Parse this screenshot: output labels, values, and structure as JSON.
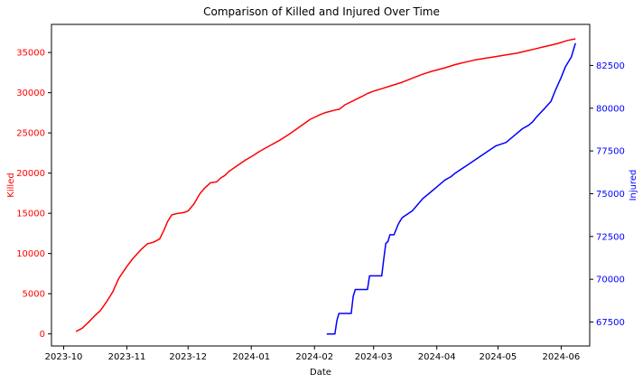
{
  "chart_data": {
    "type": "line",
    "title": "Comparison of Killed and Injured Over Time",
    "xlabel": "Date",
    "x_ticks": [
      "2023-10",
      "2023-11",
      "2023-12",
      "2024-01",
      "2024-02",
      "2024-03",
      "2024-04",
      "2024-05",
      "2024-06"
    ],
    "x_range": [
      "2023-09-25",
      "2024-06-15"
    ],
    "grid": false,
    "legend": "none",
    "left_axis": {
      "label": "Killed",
      "color": "#ff0000",
      "ylim": [
        -1500,
        38500
      ],
      "ticks": [
        0,
        5000,
        10000,
        15000,
        20000,
        25000,
        30000,
        35000
      ]
    },
    "right_axis": {
      "label": "Injured",
      "color": "#0000ff",
      "ylim": [
        66100,
        84900
      ],
      "ticks": [
        67500,
        70000,
        72500,
        75000,
        77500,
        80000,
        82500
      ]
    },
    "series": [
      {
        "axis": "left",
        "color": "#ff0000",
        "x": [
          "2023-10-07",
          "2023-10-10",
          "2023-10-13",
          "2023-10-16",
          "2023-10-19",
          "2023-10-22",
          "2023-10-25",
          "2023-10-28",
          "2023-11-01",
          "2023-11-04",
          "2023-11-08",
          "2023-11-11",
          "2023-11-14",
          "2023-11-17",
          "2023-11-19",
          "2023-11-21",
          "2023-11-23",
          "2023-11-26",
          "2023-11-29",
          "2023-12-01",
          "2023-12-04",
          "2023-12-06",
          "2023-12-07",
          "2023-12-09",
          "2023-12-12",
          "2023-12-15",
          "2023-12-17",
          "2023-12-19",
          "2023-12-21",
          "2023-12-25",
          "2023-12-29",
          "2024-01-02",
          "2024-01-05",
          "2024-01-10",
          "2024-01-15",
          "2024-01-20",
          "2024-01-25",
          "2024-01-30",
          "2024-02-04",
          "2024-02-06",
          "2024-02-12",
          "2024-02-13",
          "2024-02-16",
          "2024-02-20",
          "2024-02-24",
          "2024-02-27",
          "2024-03-01",
          "2024-03-05",
          "2024-03-10",
          "2024-03-15",
          "2024-03-20",
          "2024-03-25",
          "2024-03-30",
          "2024-04-05",
          "2024-04-10",
          "2024-04-15",
          "2024-04-20",
          "2024-04-25",
          "2024-04-30",
          "2024-05-05",
          "2024-05-10",
          "2024-05-15",
          "2024-05-20",
          "2024-05-25",
          "2024-05-30",
          "2024-06-04",
          "2024-06-08"
        ],
        "values": [
          300,
          700,
          1400,
          2200,
          2900,
          4000,
          5200,
          6900,
          8400,
          9400,
          10500,
          11200,
          11400,
          11800,
          12800,
          14000,
          14800,
          15000,
          15100,
          15300,
          16200,
          17100,
          17500,
          18100,
          18800,
          18900,
          19400,
          19700,
          20200,
          20900,
          21600,
          22200,
          22700,
          23400,
          24100,
          24900,
          25800,
          26700,
          27300,
          27500,
          27900,
          27900,
          28500,
          29000,
          29500,
          29900,
          30200,
          30500,
          30900,
          31300,
          31800,
          32300,
          32700,
          33100,
          33500,
          33800,
          34100,
          34300,
          34500,
          34700,
          34900,
          35200,
          35500,
          35800,
          36100,
          36500,
          36700
        ]
      },
      {
        "axis": "right",
        "color": "#0000ff",
        "x": [
          "2024-02-07",
          "2024-02-11",
          "2024-02-12",
          "2024-02-13",
          "2024-02-14",
          "2024-02-19",
          "2024-02-20",
          "2024-02-21",
          "2024-02-27",
          "2024-02-28",
          "2024-03-05",
          "2024-03-06",
          "2024-03-07",
          "2024-03-08",
          "2024-03-09",
          "2024-03-11",
          "2024-03-13",
          "2024-03-14",
          "2024-03-15",
          "2024-03-20",
          "2024-03-25",
          "2024-03-28",
          "2024-04-01",
          "2024-04-05",
          "2024-04-08",
          "2024-04-10",
          "2024-04-15",
          "2024-04-20",
          "2024-04-25",
          "2024-04-30",
          "2024-05-05",
          "2024-05-10",
          "2024-05-13",
          "2024-05-16",
          "2024-05-18",
          "2024-05-20",
          "2024-05-24",
          "2024-05-27",
          "2024-05-29",
          "2024-06-01",
          "2024-06-03",
          "2024-06-06",
          "2024-06-08"
        ],
        "values": [
          66800,
          66800,
          67600,
          68000,
          68000,
          68000,
          69000,
          69400,
          69400,
          70200,
          70200,
          71200,
          72100,
          72200,
          72600,
          72600,
          73200,
          73400,
          73600,
          74000,
          74700,
          75000,
          75400,
          75800,
          76000,
          76200,
          76600,
          77000,
          77400,
          77800,
          78000,
          78500,
          78800,
          79000,
          79200,
          79500,
          80000,
          80400,
          81000,
          81800,
          82400,
          83000,
          83800
        ]
      }
    ]
  }
}
